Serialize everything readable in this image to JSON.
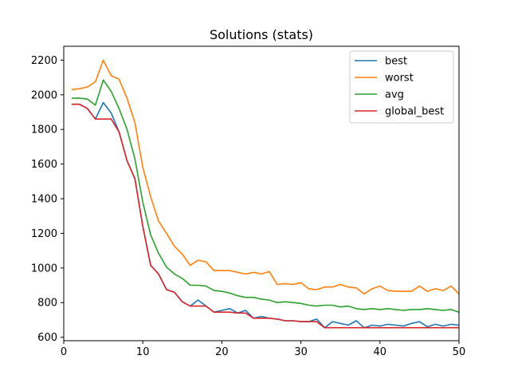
{
  "chart_data": {
    "type": "line",
    "title": "Solutions (stats)",
    "xlabel": "",
    "ylabel": "",
    "xlim": [
      0,
      50
    ],
    "ylim": [
      580,
      2280
    ],
    "xticks": [
      0,
      10,
      20,
      30,
      40,
      50
    ],
    "yticks": [
      600,
      800,
      1000,
      1200,
      1400,
      1600,
      1800,
      2000,
      2200
    ],
    "grid": false,
    "legend_position": "top-right",
    "x": [
      1,
      2,
      3,
      4,
      5,
      6,
      7,
      8,
      9,
      10,
      11,
      12,
      13,
      14,
      15,
      16,
      17,
      18,
      19,
      20,
      21,
      22,
      23,
      24,
      25,
      26,
      27,
      28,
      29,
      30,
      31,
      32,
      33,
      34,
      35,
      36,
      37,
      38,
      39,
      40,
      41,
      42,
      43,
      44,
      45,
      46,
      47,
      48,
      49,
      50
    ],
    "series": [
      {
        "name": "best",
        "color": "#1f77b4",
        "values": [
          1945,
          1945,
          1920,
          1860,
          1955,
          1895,
          1785,
          1620,
          1515,
          1240,
          1015,
          965,
          875,
          860,
          805,
          780,
          815,
          780,
          745,
          755,
          765,
          740,
          755,
          710,
          720,
          710,
          705,
          695,
          695,
          690,
          690,
          705,
          655,
          690,
          680,
          670,
          695,
          655,
          670,
          665,
          675,
          670,
          665,
          680,
          690,
          660,
          675,
          665,
          675,
          670
        ]
      },
      {
        "name": "worst",
        "color": "#ff7f0e",
        "values": [
          2030,
          2035,
          2045,
          2075,
          2200,
          2110,
          2090,
          1980,
          1840,
          1580,
          1410,
          1270,
          1200,
          1125,
          1080,
          1015,
          1045,
          1035,
          985,
          985,
          985,
          975,
          965,
          975,
          965,
          980,
          905,
          910,
          905,
          915,
          880,
          875,
          890,
          890,
          905,
          890,
          885,
          850,
          880,
          895,
          870,
          865,
          865,
          865,
          895,
          865,
          880,
          870,
          895,
          850
        ]
      },
      {
        "name": "avg",
        "color": "#2ca02c",
        "values": [
          1980,
          1980,
          1975,
          1940,
          2085,
          2020,
          1920,
          1800,
          1630,
          1380,
          1190,
          1085,
          1005,
          965,
          940,
          900,
          900,
          895,
          870,
          865,
          855,
          840,
          830,
          830,
          820,
          815,
          800,
          805,
          800,
          795,
          785,
          780,
          785,
          785,
          775,
          780,
          765,
          760,
          765,
          760,
          765,
          760,
          755,
          760,
          760,
          765,
          760,
          755,
          760,
          745
        ]
      },
      {
        "name": "global_best",
        "color": "#d62728",
        "values": [
          1945,
          1945,
          1920,
          1860,
          1860,
          1860,
          1785,
          1620,
          1515,
          1240,
          1015,
          965,
          875,
          860,
          805,
          780,
          780,
          780,
          745,
          745,
          745,
          740,
          740,
          710,
          710,
          710,
          705,
          695,
          695,
          690,
          690,
          690,
          655,
          655,
          655,
          655,
          655,
          655,
          655,
          655,
          655,
          655,
          655,
          655,
          655,
          655,
          655,
          655,
          655,
          655
        ]
      }
    ]
  }
}
